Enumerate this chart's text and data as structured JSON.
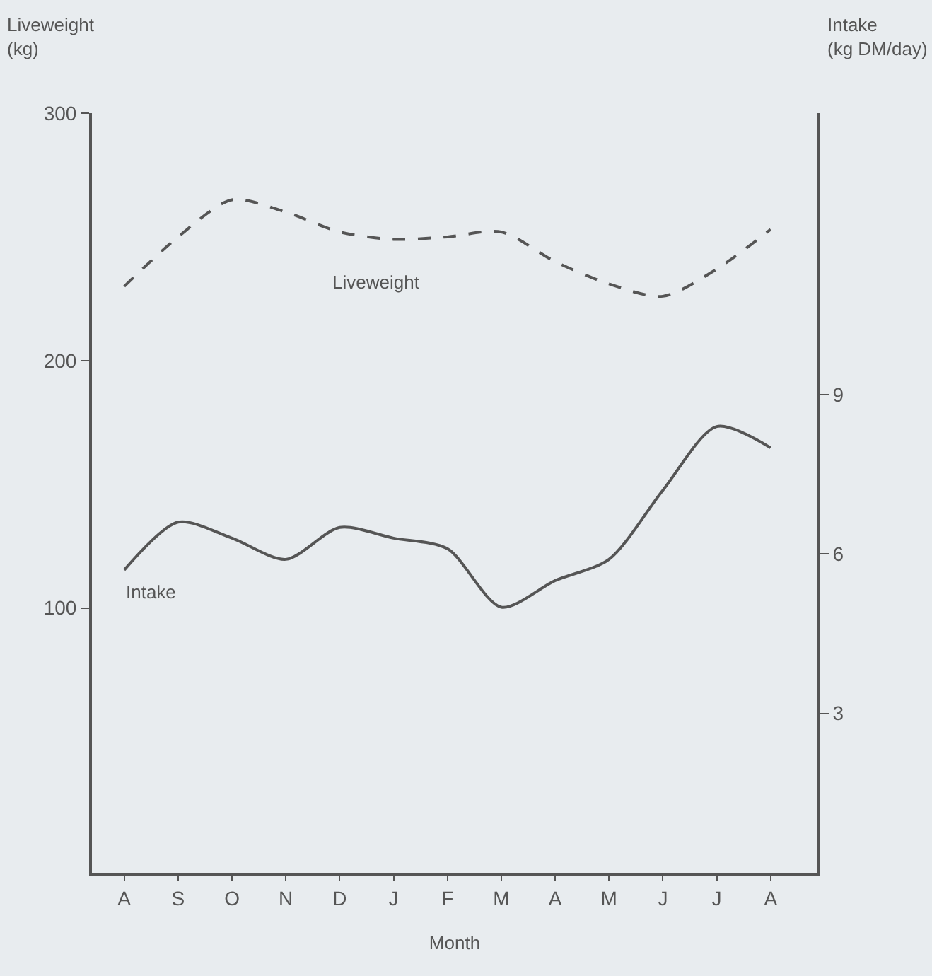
{
  "chart_data": {
    "type": "line",
    "xlabel": "Month",
    "ylabel": "Liveweight\n(kg)",
    "y2label": "Intake\n(kg DM/day)",
    "categories": [
      "A",
      "S",
      "O",
      "N",
      "D",
      "J",
      "F",
      "M",
      "A",
      "M",
      "J",
      "J",
      "A"
    ],
    "ylim": [
      -7,
      300
    ],
    "yticks": [
      100,
      200,
      300
    ],
    "y2lim": [
      0,
      14.3
    ],
    "y2ticks": [
      3,
      6,
      9
    ],
    "series": [
      {
        "name": "Liveweight",
        "color": "#555555",
        "line_style": "dashed",
        "values": [
          230,
          250,
          265,
          260,
          252,
          249,
          250,
          252,
          240,
          231,
          226,
          237,
          253
        ]
      },
      {
        "name": "Intake",
        "color": "#555555",
        "line_style": "solid",
        "axis": "y2",
        "values": [
          5.7,
          6.6,
          6.3,
          5.9,
          6.5,
          6.3,
          6.1,
          5.0,
          5.5,
          5.9,
          7.2,
          8.4,
          8.0
        ]
      }
    ],
    "grid": false,
    "legend": false,
    "marker": "none"
  }
}
